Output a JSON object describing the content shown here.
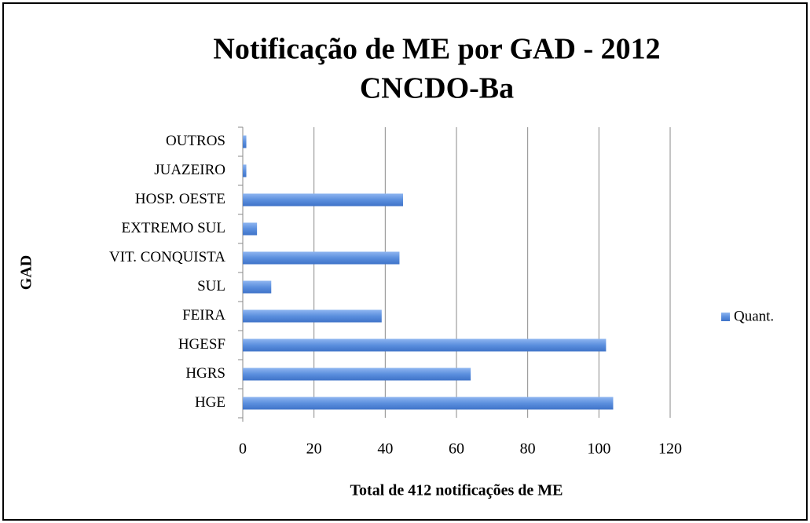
{
  "chart_data": {
    "type": "bar",
    "orientation": "horizontal",
    "title": "Notificação de ME por GAD - 2012",
    "subtitle": "CNCDO-Ba",
    "x_label": "Total de 412 notificações de ME",
    "y_label": "GAD",
    "categories": [
      "HGE",
      "HGRS",
      "HGESF",
      "FEIRA",
      "SUL",
      "VIT. CONQUISTA",
      "EXTREMO SUL",
      "HOSP. OESTE",
      "JUAZEIRO",
      "OUTROS"
    ],
    "series": [
      {
        "name": "Quant.",
        "color": "#5b8fde",
        "values": [
          104,
          64,
          102,
          39,
          8,
          44,
          4,
          45,
          1,
          1
        ]
      }
    ],
    "xlim": [
      0,
      120
    ],
    "xticks": [
      0,
      20,
      40,
      60,
      80,
      100,
      120
    ],
    "grid": true,
    "legend": "right"
  }
}
